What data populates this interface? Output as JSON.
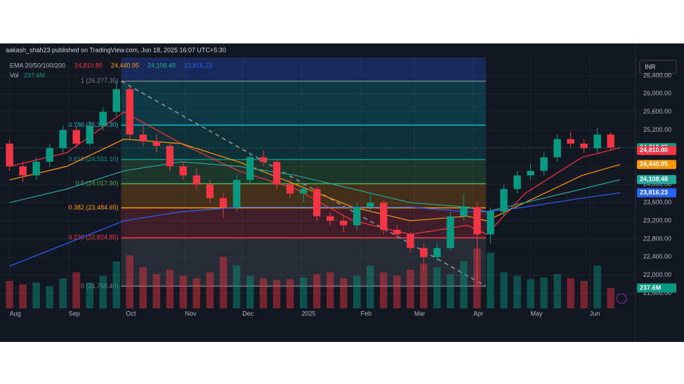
{
  "chart_data": {
    "type": "candlestick",
    "title": "aakash_shah23 published on TradingView.com, Jun 18, 2025 16:07 UTC+5:30",
    "currency": "INR",
    "brand": "TradingView",
    "xlim": [
      -5,
      328
    ],
    "xticks": [
      {
        "value": 0,
        "label": "Aug"
      },
      {
        "value": 31,
        "label": "Sep"
      },
      {
        "value": 61,
        "label": "Oct"
      },
      {
        "value": 92,
        "label": "Nov"
      },
      {
        "value": 122,
        "label": "Dec"
      },
      {
        "value": 153,
        "label": "2025"
      },
      {
        "value": 184,
        "label": "Feb"
      },
      {
        "value": 212,
        "label": "Mar"
      },
      {
        "value": 243,
        "label": "Apr"
      },
      {
        "value": 273,
        "label": "May"
      },
      {
        "value": 304,
        "label": "Jun"
      }
    ],
    "ylim": [
      21270,
      26800
    ],
    "yticks": [
      {
        "value": 21600,
        "label": "21,600.00"
      },
      {
        "value": 22000,
        "label": "22,000.00"
      },
      {
        "value": 22400,
        "label": "22,400.00"
      },
      {
        "value": 22800,
        "label": "22,800.00"
      },
      {
        "value": 23200,
        "label": "23,200.00"
      },
      {
        "value": 23600,
        "label": "23,600.00"
      },
      {
        "value": 24000,
        "label": "24,000.00"
      },
      {
        "value": 24400,
        "label": "24,400.00"
      },
      {
        "value": 24800,
        "label": "24,800.00"
      },
      {
        "value": 25200,
        "label": "25,200.00"
      },
      {
        "value": 25600,
        "label": "25,600.00"
      },
      {
        "value": 26000,
        "label": "26,000.00"
      },
      {
        "value": 26400,
        "label": "26,400.00"
      }
    ],
    "grid": true,
    "up_color": "#089981",
    "down_color": "#f23645",
    "candles": {
      "x": [
        0,
        7,
        14,
        21,
        28,
        35,
        42,
        49,
        56,
        63,
        70,
        77,
        84,
        91,
        98,
        105,
        112,
        119,
        126,
        133,
        140,
        147,
        154,
        161,
        168,
        175,
        182,
        189,
        196,
        203,
        210,
        217,
        224,
        231,
        238,
        245,
        252,
        259,
        266,
        273,
        280,
        287,
        294,
        301,
        308,
        315
      ],
      "open": [
        24900,
        24400,
        24200,
        24500,
        24800,
        25200,
        24900,
        25300,
        25600,
        26100,
        25100,
        24950,
        24850,
        24400,
        24200,
        24000,
        23700,
        23500,
        24100,
        24600,
        24500,
        24000,
        23800,
        23900,
        23300,
        23200,
        23100,
        23500,
        23600,
        23000,
        22900,
        22600,
        22400,
        22600,
        23300,
        23500,
        22900,
        23400,
        23900,
        24200,
        24300,
        24600,
        25000,
        24900,
        24800,
        25100
      ],
      "high": [
        24980,
        24500,
        24600,
        24900,
        25300,
        25300,
        25400,
        25700,
        26277.35,
        26150,
        25300,
        25100,
        24900,
        24500,
        24350,
        24100,
        23800,
        24200,
        24700,
        24750,
        24550,
        24100,
        24000,
        23950,
        23400,
        23300,
        23600,
        23800,
        23650,
        23100,
        22950,
        22700,
        22700,
        23400,
        23800,
        23600,
        23500,
        24000,
        24300,
        24450,
        24700,
        25100,
        25150,
        25000,
        25250,
        25150
      ],
      "low": [
        24300,
        24050,
        24100,
        24400,
        24700,
        24800,
        24850,
        25200,
        25500,
        25000,
        24850,
        24700,
        24300,
        24100,
        23900,
        23600,
        23263,
        23400,
        24000,
        24400,
        23900,
        23700,
        23600,
        23200,
        23100,
        22950,
        23000,
        23400,
        22900,
        22800,
        22500,
        22100,
        22300,
        22550,
        23200,
        21760,
        22700,
        23300,
        23800,
        24100,
        24200,
        24500,
        24800,
        24700,
        24700,
        24750
      ],
      "close": [
        24400,
        24200,
        24500,
        24800,
        25200,
        24900,
        25300,
        25600,
        26100,
        25100,
        24950,
        24850,
        24400,
        24200,
        24000,
        23700,
        23500,
        24100,
        24600,
        24500,
        24000,
        23800,
        23900,
        23300,
        23200,
        23100,
        23500,
        23600,
        23000,
        22900,
        22600,
        22400,
        22600,
        23300,
        23500,
        22900,
        23400,
        23900,
        24200,
        24300,
        24600,
        25000,
        24900,
        24800,
        25100,
        24812.05
      ],
      "volume": [
        320,
        280,
        300,
        260,
        350,
        420,
        300,
        380,
        550,
        620,
        480,
        400,
        450,
        380,
        350,
        420,
        600,
        500,
        380,
        350,
        330,
        340,
        360,
        400,
        420,
        350,
        380,
        500,
        420,
        380,
        450,
        520,
        480,
        400,
        550,
        700,
        650,
        420,
        380,
        340,
        360,
        400,
        350,
        320,
        500,
        237.6
      ]
    },
    "last_price": {
      "value": 24812.05,
      "label": "24,812.05"
    },
    "vlim": [
      0,
      2930
    ],
    "volume_name": "Vol",
    "volume_current": {
      "value": 237.6,
      "label": "237.6M"
    },
    "ema_name": "EMA 20/50/100/200",
    "ema_x": [
      0,
      30,
      60,
      90,
      120,
      150,
      180,
      210,
      240,
      250,
      270,
      300,
      320
    ],
    "emas": [
      {
        "color": "#f23645",
        "values": [
          24400,
          24700,
          25600,
          24900,
          24300,
          23900,
          23200,
          22900,
          23100,
          22900,
          23800,
          24600,
          24810.8
        ],
        "current": {
          "value": 24810.8,
          "label": "24,810.80"
        }
      },
      {
        "color": "#ff9800",
        "values": [
          24100,
          24400,
          25000,
          24900,
          24500,
          24000,
          23500,
          23200,
          23300,
          23200,
          23600,
          24200,
          24440.95
        ],
        "current": {
          "value": 24440.95,
          "label": "24,440.95"
        }
      },
      {
        "color": "#26a69a",
        "values": [
          23600,
          23900,
          24300,
          24500,
          24400,
          24200,
          23900,
          23600,
          23500,
          23400,
          23600,
          23900,
          24108.48
        ],
        "current": {
          "value": 24108.48,
          "label": "24,108.48"
        }
      },
      {
        "color": "#2962ff",
        "values": [
          22200,
          22700,
          23200,
          23400,
          23500,
          23500,
          23500,
          23500,
          23400,
          23400,
          23500,
          23700,
          23816.23
        ],
        "current": {
          "value": 23816.23,
          "label": "23,816.23"
        }
      }
    ],
    "fib": {
      "x": [
        58.5,
        249.6
      ],
      "extension_color": "#2962ff",
      "levels": [
        {
          "price": 26277.35,
          "label": "1 (26,277.35)",
          "color": "#787b86"
        },
        {
          "price": 25310.3,
          "label": "0.786 (25,310.30)",
          "color": "#00bcd4"
        },
        {
          "price": 24551.1,
          "label": "0.618 (24,551.10)",
          "color": "#009688"
        },
        {
          "price": 24017.9,
          "label": "0.5 (24,017.90)",
          "color": "#4caf50"
        },
        {
          "price": 23484.65,
          "label": "0.382 (23,484.65)",
          "color": "#ff9800"
        },
        {
          "price": 22824.85,
          "label": "0.236 (22,824.85)",
          "color": "#f23645"
        },
        {
          "price": 21758.4,
          "label": "0 (21,758.40)",
          "color": "#787b86"
        }
      ]
    }
  }
}
